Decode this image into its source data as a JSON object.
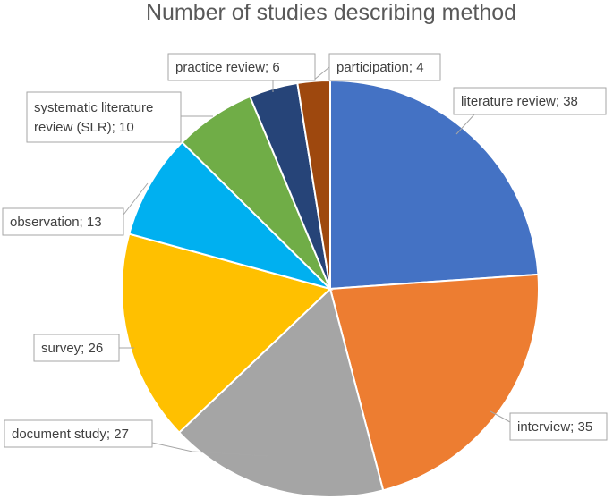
{
  "chart_data": {
    "type": "pie",
    "title": "Number of studies describing method",
    "slices": [
      {
        "label": "literature review; 38",
        "value": 38,
        "color": "#4472c4"
      },
      {
        "label": "interview; 35",
        "value": 35,
        "color": "#ed7d31"
      },
      {
        "label": "document study; 27",
        "value": 27,
        "color": "#a5a5a5"
      },
      {
        "label": "survey; 26",
        "value": 26,
        "color": "#ffc000"
      },
      {
        "label": "observation; 13",
        "value": 13,
        "color": "#00b0f0"
      },
      {
        "label": "systematic literature review (SLR); 10",
        "value": 10,
        "color": "#70ad47"
      },
      {
        "label": "practice review; 6",
        "value": 6,
        "color": "#264478"
      },
      {
        "label": "participation; 4",
        "value": 4,
        "color": "#9e480e"
      }
    ],
    "legend": "none",
    "data_labels": "callouts outside with leader lines"
  }
}
